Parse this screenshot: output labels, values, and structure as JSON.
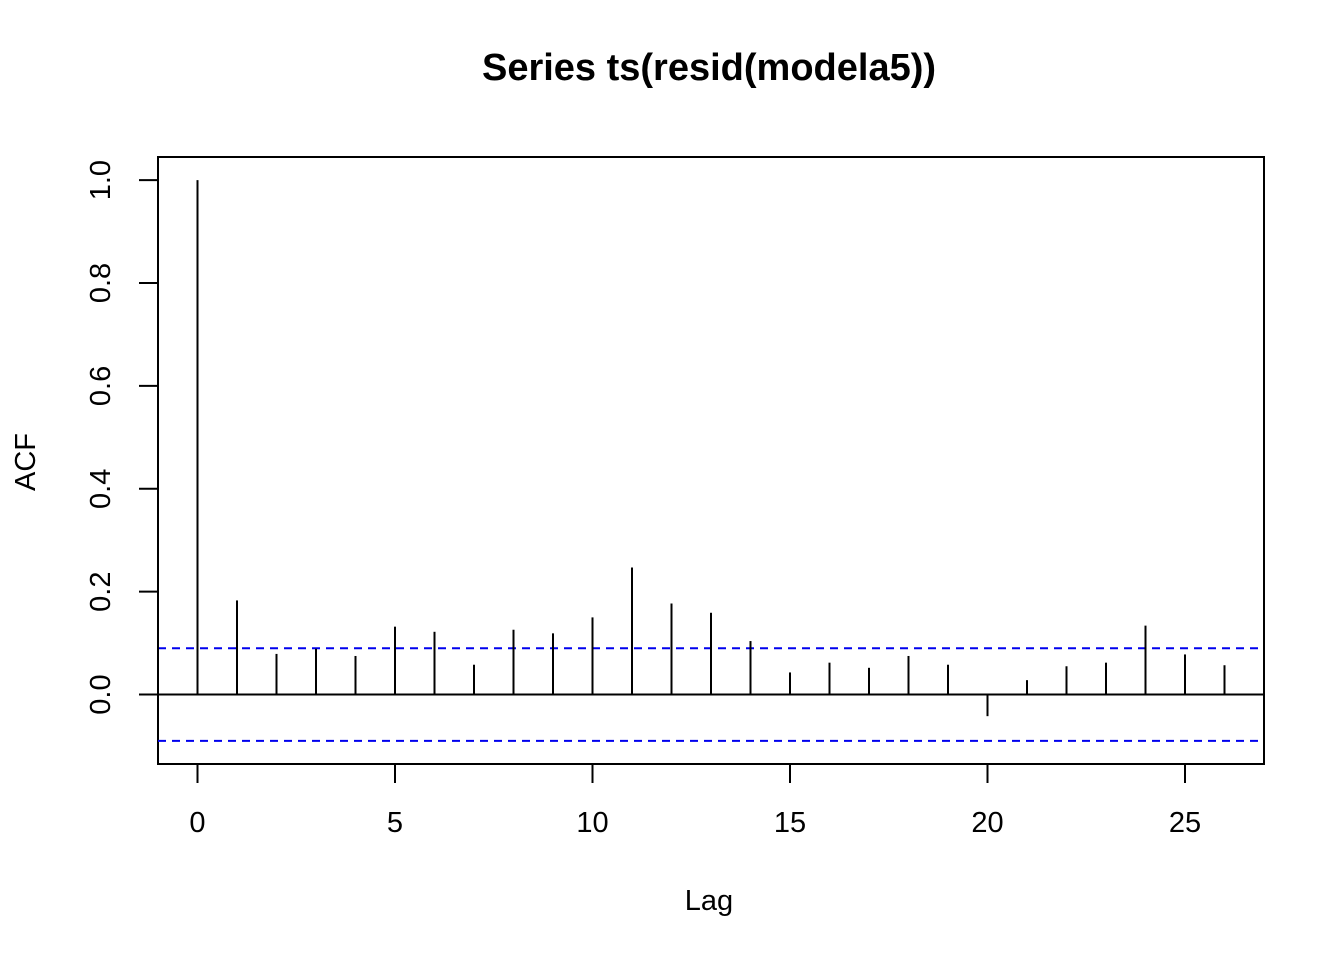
{
  "chart_data": {
    "type": "bar",
    "subtype": "acf-stem",
    "title": "Series  ts(resid(modela5))",
    "xlabel": "Lag",
    "ylabel": "ACF",
    "xlim": [
      -1,
      27
    ],
    "ylim": [
      -0.135,
      1.045
    ],
    "xticks": [
      "0",
      "5",
      "10",
      "15",
      "20",
      "25"
    ],
    "xtick_values": [
      0,
      5,
      10,
      15,
      20,
      25
    ],
    "yticks": [
      "0.0",
      "0.2",
      "0.4",
      "0.6",
      "0.8",
      "1.0"
    ],
    "ytick_values": [
      0.0,
      0.2,
      0.4,
      0.6,
      0.8,
      1.0
    ],
    "lags": [
      0,
      1,
      2,
      3,
      4,
      5,
      6,
      7,
      8,
      9,
      10,
      11,
      12,
      13,
      14,
      15,
      16,
      17,
      18,
      19,
      20,
      21,
      22,
      23,
      24,
      25,
      26
    ],
    "acf": [
      1.0,
      0.183,
      0.079,
      0.089,
      0.075,
      0.132,
      0.122,
      0.058,
      0.126,
      0.119,
      0.15,
      0.247,
      0.177,
      0.159,
      0.104,
      0.043,
      0.062,
      0.052,
      0.075,
      0.058,
      -0.042,
      0.028,
      0.055,
      0.062,
      0.134,
      0.078,
      0.057
    ],
    "confidence_bound": 0.09,
    "confidence_color": "#0000ee",
    "grid": false,
    "legend": "none"
  }
}
